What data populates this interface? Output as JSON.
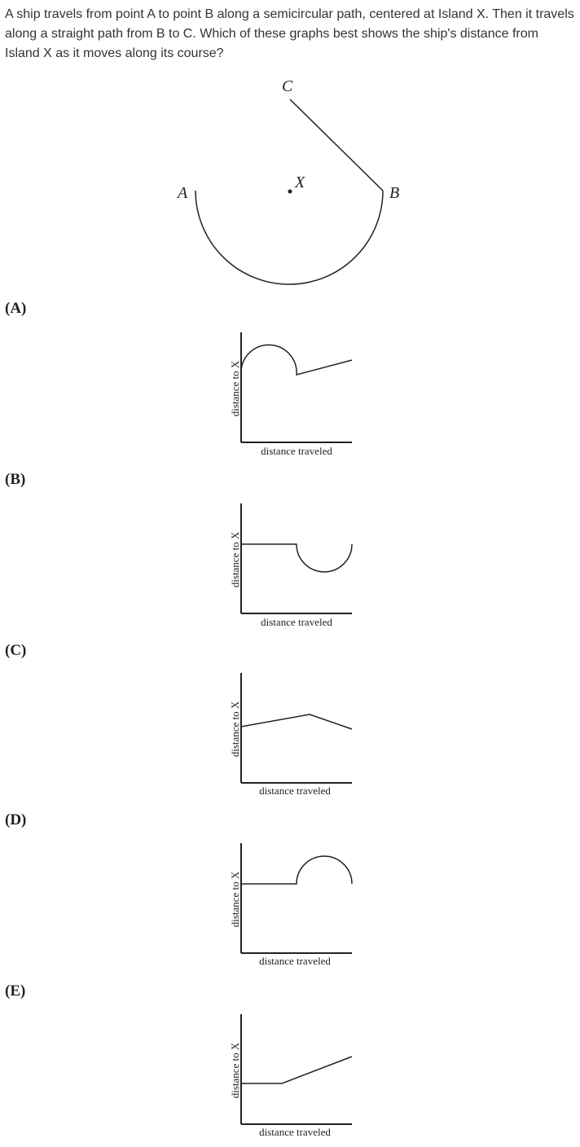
{
  "question": {
    "text": "A ship travels from point A to point B along a semicircular path, centered at Island X. Then it travels along a straight path from B to C. Which of these graphs best shows the ship's distance from Island X as it moves along its course?"
  },
  "diagram": {
    "point_a": "A",
    "point_b": "B",
    "point_c": "C",
    "island": "X"
  },
  "choices": [
    {
      "label": "(A)",
      "xlabel": "distance traveled",
      "ylabel": "distance to X"
    },
    {
      "label": "(B)",
      "xlabel": "distance traveled",
      "ylabel": "distance to X"
    },
    {
      "label": "(C)",
      "xlabel": "distance traveled",
      "ylabel": "distance to X"
    },
    {
      "label": "(D)",
      "xlabel": "distance traveled",
      "ylabel": "distance to X"
    },
    {
      "label": "(E)",
      "xlabel": "distance traveled",
      "ylabel": "distance to X"
    }
  ]
}
